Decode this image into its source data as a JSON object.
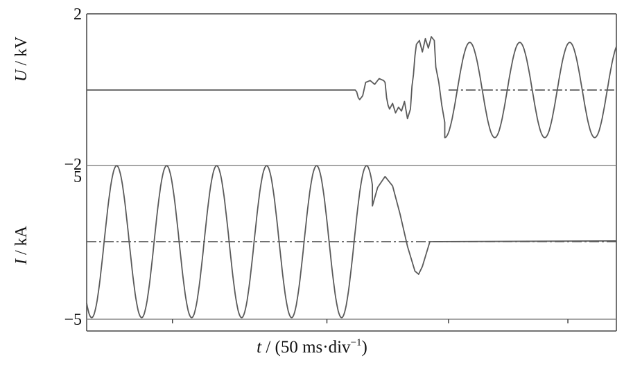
{
  "chart_data": [
    {
      "type": "line",
      "panel": "voltage",
      "ylabel_symbol": "U",
      "ylabel_unit": " / kV",
      "yticks": [
        "2",
        "−2"
      ],
      "ylim": [
        -2,
        2
      ],
      "xlim": [
        0,
        7.1
      ],
      "reference_line": {
        "style": "dash-dot",
        "y": 0
      },
      "series": [
        {
          "description": "voltage waveform",
          "x": [
            0,
            3.6,
            3.62,
            3.64,
            3.66,
            3.7,
            3.74,
            3.8,
            3.86,
            3.92,
            3.98,
            4.0,
            4.02,
            4.04,
            4.06,
            4.1,
            4.14,
            4.18,
            4.22,
            4.26,
            4.3,
            4.34,
            4.36,
            4.38,
            4.4,
            4.42,
            4.46,
            4.5,
            4.54,
            4.58,
            4.62,
            4.66,
            4.68,
            4.72,
            4.76,
            4.8
          ],
          "y": [
            0,
            0,
            -0.05,
            -0.2,
            -0.25,
            -0.15,
            0.2,
            0.25,
            0.15,
            0.3,
            0.25,
            0.2,
            -0.2,
            -0.4,
            -0.5,
            -0.35,
            -0.6,
            -0.45,
            -0.55,
            -0.3,
            -0.75,
            -0.5,
            0.1,
            0.4,
            0.9,
            1.2,
            1.3,
            1.0,
            1.35,
            1.1,
            1.4,
            1.3,
            0.6,
            0.2,
            -0.4,
            -0.85
          ],
          "continuation": {
            "type": "sine",
            "x_start": 4.8,
            "x_end": 7.1,
            "amplitude": 1.25,
            "period": 0.67,
            "phase_at_start": -1.5708
          }
        }
      ]
    },
    {
      "type": "line",
      "panel": "current",
      "ylabel_symbol": "I",
      "ylabel_unit": " / kA",
      "yticks": [
        "5",
        "−5"
      ],
      "ylim": [
        -5,
        5
      ],
      "xlim": [
        0,
        7.1
      ],
      "reference_line": {
        "style": "dash-dot",
        "y": 0
      },
      "series": [
        {
          "description": "current waveform",
          "sine": {
            "x_start": 0,
            "x_end": 3.83,
            "amplitude": 4.9,
            "period": 0.67,
            "phase_at_start": -2.2
          },
          "x": [
            3.83,
            3.9,
            4.0,
            4.1,
            4.2,
            4.3,
            4.4,
            4.45,
            4.5,
            4.6,
            7.1
          ],
          "y": [
            2.3,
            3.5,
            4.2,
            3.6,
            1.8,
            -0.3,
            -1.9,
            -2.1,
            -1.6,
            0.0,
            0.05
          ]
        }
      ]
    }
  ],
  "x_axis": {
    "label_symbol": "t",
    "label_unit_a": " / (50 ms·div",
    "label_exp": "−1",
    "label_unit_b": ")",
    "major_ticks": [
      1.15,
      3.22,
      4.85,
      6.45
    ]
  },
  "colors": {
    "trace": "#5a5a5a",
    "axis": "#444444",
    "baseline": "#888888",
    "refline": "#444444"
  }
}
